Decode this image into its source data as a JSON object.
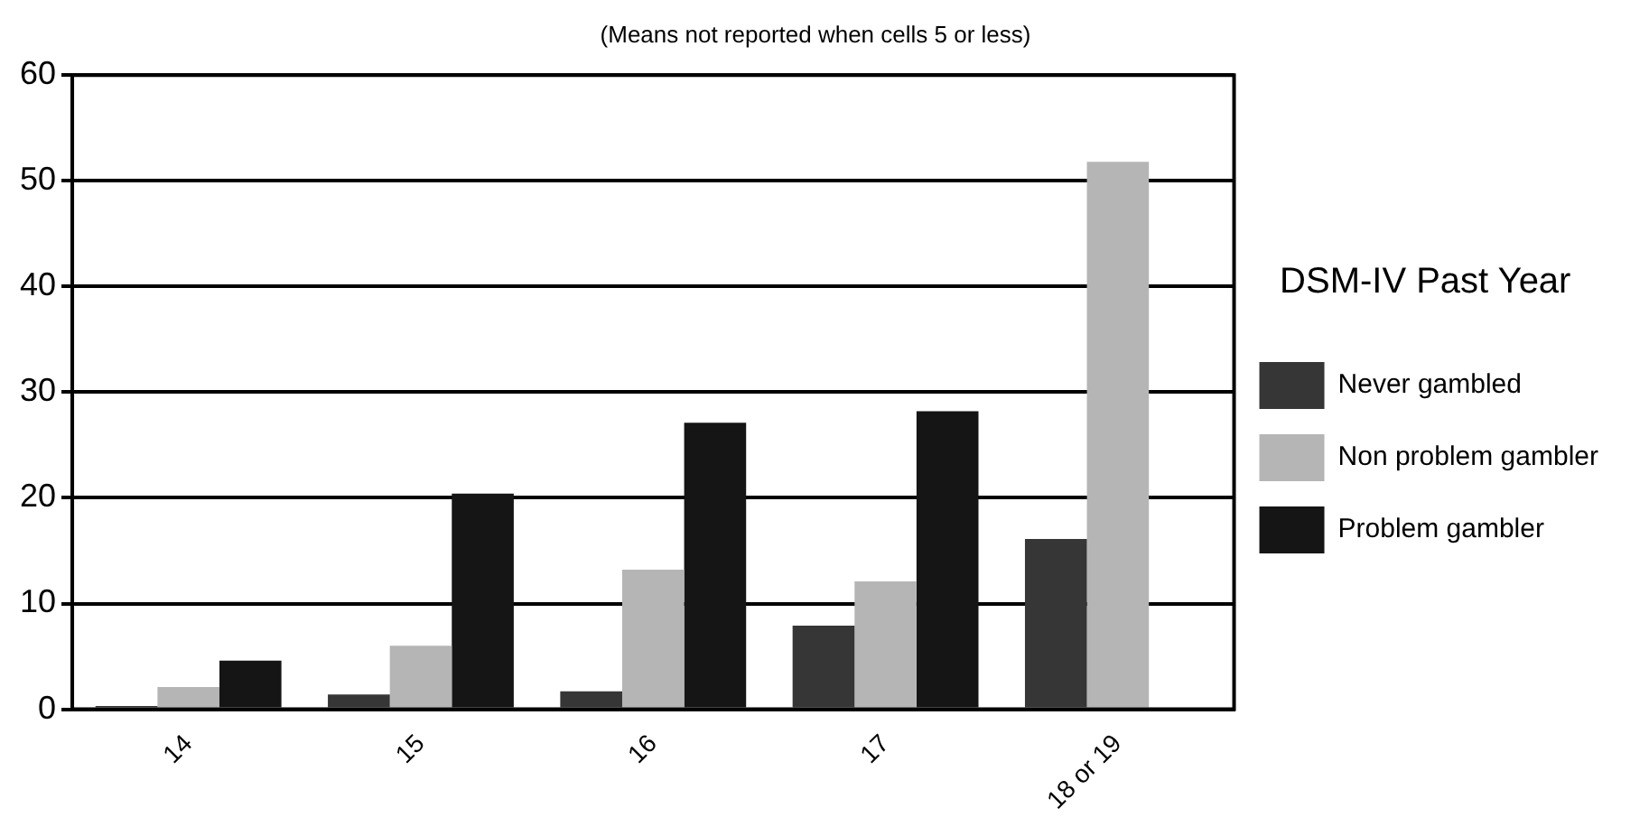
{
  "chart_data": {
    "type": "bar",
    "subtitle": "(Means not reported when cells 5 or less)",
    "legend_title": "DSM-IV Past Year",
    "categories": [
      "14",
      "15",
      "16",
      "17",
      "18 or 19"
    ],
    "series": [
      {
        "name": "Never gambled",
        "color": "#363636",
        "values": [
          0.3,
          1.4,
          1.7,
          7.9,
          16.1
        ]
      },
      {
        "name": "Non problem gambler",
        "color": "#b5b5b5",
        "values": [
          2.1,
          6.0,
          13.2,
          12.1,
          51.8
        ]
      },
      {
        "name": "Problem gambler",
        "color": "#151515",
        "values": [
          4.6,
          20.4,
          27.1,
          28.2,
          null
        ]
      }
    ],
    "ylim": [
      0,
      60
    ],
    "yticks": [
      0,
      10,
      20,
      30,
      40,
      50,
      60
    ],
    "grid": "y",
    "legend": "right"
  }
}
